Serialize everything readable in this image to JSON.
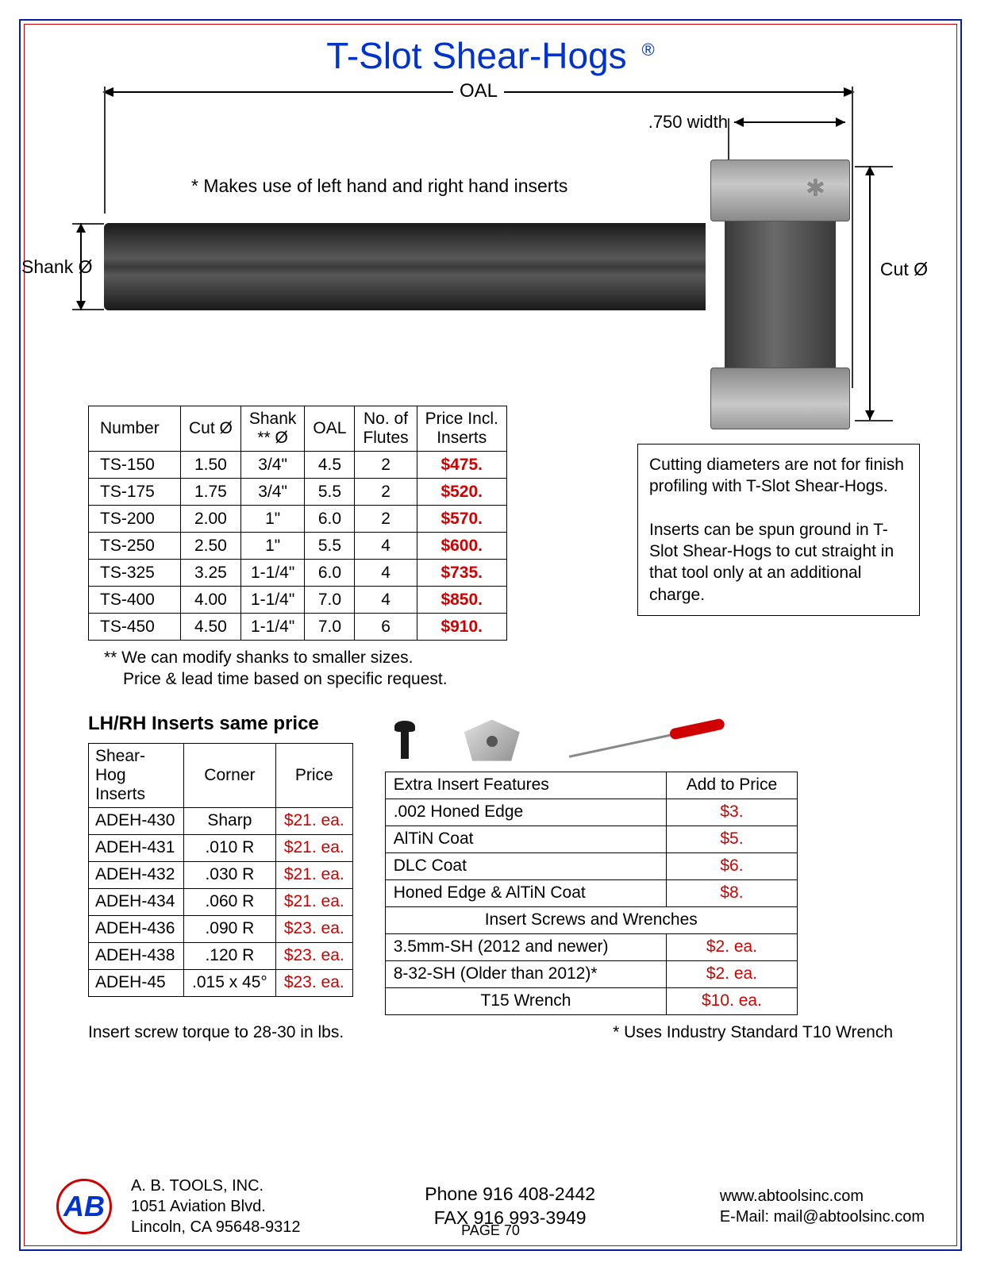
{
  "title": "T-Slot Shear-Hogs",
  "trademark": "®",
  "diagram": {
    "oal_label": "OAL",
    "width_label": ".750 width",
    "tagline": "* Makes use of left hand and right hand inserts",
    "shank_label": "Shank Ø",
    "cut_label": "Cut Ø"
  },
  "main_table": {
    "headers": [
      "Number",
      "Cut Ø",
      "Shank ** Ø",
      "OAL",
      "No. of Flutes",
      "Price Incl. Inserts"
    ],
    "rows": [
      [
        "TS-150",
        "1.50",
        "3/4\"",
        "4.5",
        "2",
        "$475."
      ],
      [
        "TS-175",
        "1.75",
        "3/4\"",
        "5.5",
        "2",
        "$520."
      ],
      [
        "TS-200",
        "2.00",
        "1\"",
        "6.0",
        "2",
        "$570."
      ],
      [
        "TS-250",
        "2.50",
        "1\"",
        "5.5",
        "4",
        "$600."
      ],
      [
        "TS-325",
        "3.25",
        "1-1/4\"",
        "6.0",
        "4",
        "$735."
      ],
      [
        "TS-400",
        "4.00",
        "1-1/4\"",
        "7.0",
        "4",
        "$850."
      ],
      [
        "TS-450",
        "4.50",
        "1-1/4\"",
        "7.0",
        "6",
        "$910."
      ]
    ]
  },
  "side_note_1": "Cutting diameters are not for finish profiling with T-Slot Shear-Hogs.",
  "side_note_2": "Inserts can be spun ground in T-Slot Shear-Hogs to cut straight in that tool only at an additional charge.",
  "footnote_1": "** We can modify shanks to smaller sizes.",
  "footnote_2": "Price & lead time based on specific request.",
  "sub_heading": "LH/RH Inserts same price",
  "inserts_table": {
    "headers": [
      "Shear-Hog Inserts",
      "Corner",
      "Price"
    ],
    "rows": [
      [
        "ADEH-430",
        "Sharp",
        "$21.  ea."
      ],
      [
        "ADEH-431",
        ".010 R",
        "$21.  ea."
      ],
      [
        "ADEH-432",
        ".030 R",
        "$21.  ea."
      ],
      [
        "ADEH-434",
        ".060 R",
        "$21.  ea."
      ],
      [
        "ADEH-436",
        ".090 R",
        "$23.  ea."
      ],
      [
        "ADEH-438",
        ".120 R",
        "$23.  ea."
      ],
      [
        "ADEH-45",
        ".015 x 45°",
        "$23.  ea."
      ]
    ]
  },
  "features_table": {
    "header_left": "Extra Insert Features",
    "header_right": "Add to Price",
    "rows": [
      [
        ".002 Honed Edge",
        "$3."
      ],
      [
        "AlTiN Coat",
        "$5."
      ],
      [
        "DLC Coat",
        "$6."
      ],
      [
        "Honed Edge & AlTiN Coat",
        "$8."
      ]
    ],
    "section2_header": "Insert Screws and Wrenches",
    "rows2": [
      [
        "3.5mm-SH (2012 and newer)",
        "$2. ea."
      ],
      [
        "8-32-SH (Older than 2012)*",
        "$2. ea."
      ],
      [
        "T15 Wrench",
        "$10. ea."
      ]
    ]
  },
  "torque_note": "Insert screw torque to 28-30 in lbs.",
  "wrench_note": "* Uses Industry Standard T10 Wrench",
  "footer": {
    "company": "A. B. TOOLS, INC.",
    "addr1": "1051 Aviation Blvd.",
    "addr2": "Lincoln, CA 95648-9312",
    "phone": "Phone 916 408-2442",
    "fax": "FAX 916 993-3949",
    "web": "www.abtoolsinc.com",
    "email": "E-Mail: mail@abtoolsinc.com",
    "page": "PAGE 70"
  },
  "colors": {
    "title": "#0033cc",
    "frame_outer": "#0a1f9e",
    "frame_inner": "#d00000",
    "price": "#d00000"
  }
}
